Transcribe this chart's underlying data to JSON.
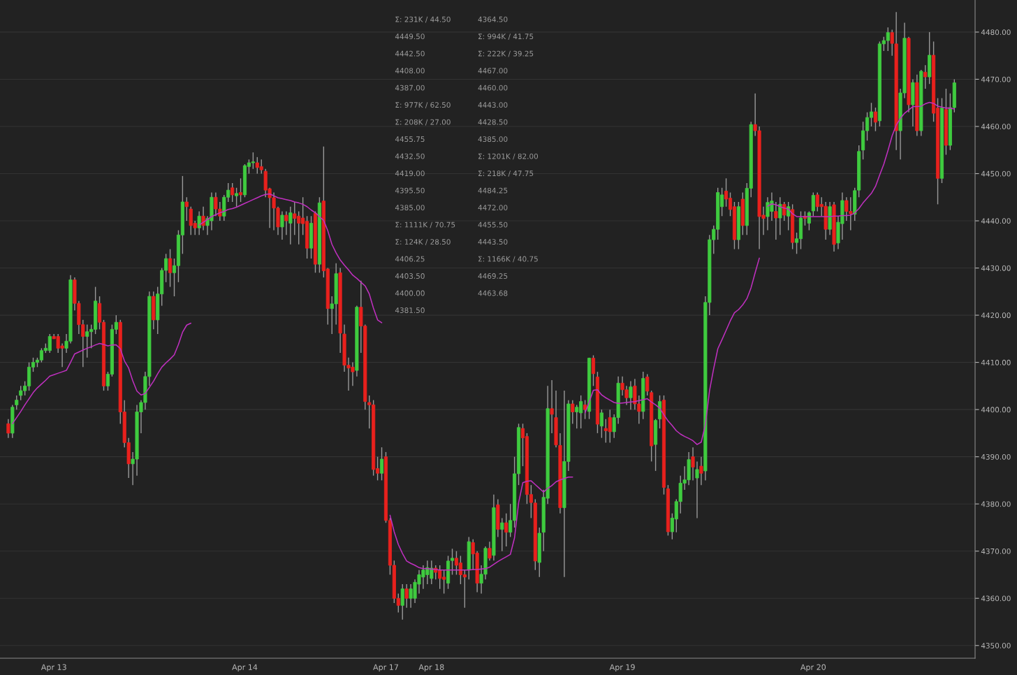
{
  "chart_data": {
    "type": "candlestick",
    "categories": [
      null,
      null,
      null,
      null,
      null,
      null,
      null,
      null,
      null,
      null,
      null,
      "Apr 13",
      null,
      null,
      null,
      null,
      null,
      null,
      null,
      null,
      null,
      null,
      null,
      null,
      null,
      null,
      null,
      null,
      null,
      null,
      null,
      null,
      null,
      null,
      null,
      null,
      null,
      null,
      null,
      null,
      null,
      null,
      null,
      null,
      null,
      null,
      null,
      null,
      null,
      null,
      null,
      null,
      null,
      null,
      null,
      null,
      null,
      "Apr 14",
      null,
      null,
      null,
      null,
      null,
      null,
      null,
      null,
      null,
      null,
      null,
      null,
      null,
      null,
      null,
      null,
      null,
      null,
      null,
      null,
      null,
      null,
      null,
      null,
      null,
      null,
      null,
      null,
      null,
      null,
      null,
      null,
      null,
      "Apr 17",
      null,
      null,
      null,
      null,
      null,
      null,
      null,
      null,
      null,
      null,
      "Apr 18",
      null,
      null,
      null,
      null,
      null,
      null,
      null,
      null,
      null,
      null,
      null,
      null,
      null,
      null,
      null,
      null,
      null,
      null,
      null,
      null,
      null,
      null,
      null,
      null,
      null,
      null,
      null,
      null,
      null,
      null,
      null,
      null,
      null,
      null,
      null,
      null,
      null,
      null,
      null,
      null,
      null,
      null,
      null,
      null,
      null,
      "Apr 19",
      null,
      null,
      null,
      null,
      null,
      null,
      null,
      null,
      null,
      null,
      null,
      null,
      null,
      null,
      null,
      null,
      null,
      null,
      null,
      null,
      null,
      null,
      null,
      null,
      null,
      null,
      null,
      null,
      null,
      null,
      null,
      null,
      null,
      null,
      null,
      null,
      null,
      null,
      null,
      null,
      null,
      null,
      null,
      null,
      null,
      "Apr 20",
      null,
      null,
      null,
      null,
      null,
      null,
      null,
      null,
      null,
      null,
      null,
      null,
      null,
      null,
      null,
      null,
      null,
      null,
      null,
      null,
      null,
      null,
      null,
      null,
      null,
      null,
      null,
      null,
      null,
      null,
      null,
      null,
      null,
      null
    ],
    "ohlc": [
      [
        4397,
        4398,
        4394,
        4395
      ],
      [
        4395,
        4401,
        4394,
        4400.5
      ],
      [
        4401,
        4403,
        4400,
        4402
      ],
      [
        4403,
        4405,
        4402,
        4404
      ],
      [
        4404,
        4406,
        4403,
        4405
      ],
      [
        4405,
        4410,
        4404,
        4409
      ],
      [
        4409,
        4411,
        4408,
        4410
      ],
      [
        4410,
        4411,
        4409,
        4410.5
      ],
      [
        4410.5,
        4413,
        4410,
        4412.5
      ],
      [
        4412.5,
        4414,
        4412,
        4413
      ],
      [
        4412.5,
        4416,
        4412,
        4415.5
      ],
      [
        4415.5,
        4416,
        4415,
        4415
      ],
      [
        4415.5,
        4416,
        4412,
        4413
      ],
      [
        4413.5,
        4414,
        4409,
        4413
      ],
      [
        4413,
        4416,
        4412,
        4414.5
      ],
      [
        4414.5,
        4428.5,
        4414,
        4427.5
      ],
      [
        4427.5,
        4428,
        4421,
        4422.5
      ],
      [
        4422.5,
        4423,
        4416,
        4418
      ],
      [
        4418,
        4419,
        4409,
        4415.5
      ],
      [
        4415.5,
        4418,
        4411,
        4416.5
      ],
      [
        4416.5,
        4418,
        4413,
        4417
      ],
      [
        4417,
        4426,
        4416,
        4423
      ],
      [
        4422.5,
        4424,
        4417,
        4418.5
      ],
      [
        4418.5,
        4419,
        4404,
        4405
      ],
      [
        4405,
        4408,
        4404,
        4407.5
      ],
      [
        4407.5,
        4418,
        4407,
        4417
      ],
      [
        4417,
        4420,
        4416,
        4418.5
      ],
      [
        4418.5,
        4419,
        4397,
        4399.5
      ],
      [
        4399.5,
        4402,
        4392,
        4393
      ],
      [
        4393,
        4394,
        4385.5,
        4388.5
      ],
      [
        4388.5,
        4391,
        4384,
        4389.5
      ],
      [
        4389.5,
        4401,
        4386,
        4399.5
      ],
      [
        4399.5,
        4402,
        4395,
        4401.5
      ],
      [
        4401.5,
        4408,
        4400,
        4407
      ],
      [
        4407,
        4425,
        4405,
        4424
      ],
      [
        4424,
        4425,
        4417,
        4419
      ],
      [
        4419,
        4426,
        4416,
        4424.5
      ],
      [
        4424.5,
        4430,
        4422,
        4429.5
      ],
      [
        4429.5,
        4433,
        4427,
        4432
      ],
      [
        4432,
        4434,
        4426,
        4429
      ],
      [
        4429,
        4432,
        4424,
        4430.5
      ],
      [
        4430.5,
        4438,
        4427,
        4437
      ],
      [
        4437,
        4449.5,
        4433,
        4444
      ],
      [
        4444,
        4445,
        4440,
        4443
      ],
      [
        4442.5,
        4443,
        4437,
        4439
      ],
      [
        4439.5,
        4440,
        4437,
        4438.5
      ],
      [
        4438.5,
        4442,
        4437,
        4441
      ],
      [
        4441,
        4443,
        4438,
        4439
      ],
      [
        4439,
        4441,
        4437,
        4440.5
      ],
      [
        4440,
        4446,
        4438,
        4445
      ],
      [
        4445,
        4446,
        4441,
        4442.5
      ],
      [
        4442.5,
        4444,
        4440,
        4441
      ],
      [
        4441,
        4445.5,
        4440,
        4445
      ],
      [
        4445,
        4448,
        4444,
        4446.5
      ],
      [
        4447,
        4448,
        4444,
        4445.5
      ],
      [
        4445.3,
        4447,
        4443,
        4445.8
      ],
      [
        4446,
        4449,
        4444,
        4445.5
      ],
      [
        4445.5,
        4452,
        4445,
        4451.7
      ],
      [
        4451.5,
        4453,
        4450,
        4452.3
      ],
      [
        4452.3,
        4454.5,
        4451,
        4452.5
      ],
      [
        4452.3,
        4453.5,
        4450,
        4451.3
      ],
      [
        4451.5,
        4453,
        4450,
        4450.8
      ],
      [
        4450.5,
        4451,
        4445,
        4446.5
      ],
      [
        4446.8,
        4447,
        4438.5,
        4444.9
      ],
      [
        4444.9,
        4446,
        4438,
        4442.7
      ],
      [
        4442.7,
        4443,
        4437,
        4438.7
      ],
      [
        4438.7,
        4442,
        4436,
        4441.2
      ],
      [
        4441.2,
        4442,
        4437,
        4440
      ],
      [
        4439.5,
        4443,
        4435,
        4441.7
      ],
      [
        4441.5,
        4444,
        4437,
        4440.5
      ],
      [
        4441,
        4442,
        4435,
        4439.5
      ],
      [
        4440.6,
        4445,
        4437,
        4439.4
      ],
      [
        4439.9,
        4441,
        4432,
        4434.2
      ],
      [
        4434.2,
        4441,
        4432,
        4439.5
      ],
      [
        4441.6,
        4442,
        4429,
        4430.8
      ],
      [
        4430.8,
        4445,
        4429,
        4443.8
      ],
      [
        4444.2,
        4455.75,
        4428,
        4429.4
      ],
      [
        4429.8,
        4430,
        4418,
        4421.4
      ],
      [
        4421.4,
        4424,
        4416,
        4422.4
      ],
      [
        4422.4,
        4431,
        4418,
        4428.8
      ],
      [
        4429,
        4430,
        4412,
        4416.2
      ],
      [
        4416,
        4418,
        4408,
        4409.4
      ],
      [
        4409.4,
        4411,
        4404,
        4408.8
      ],
      [
        4409,
        4410,
        4405,
        4408
      ],
      [
        4408.3,
        4422,
        4407,
        4421.7
      ],
      [
        4421.7,
        4427.3,
        4412,
        4417.7
      ],
      [
        4417.7,
        4418,
        4400,
        4401.7
      ],
      [
        4401.5,
        4403,
        4396,
        4401
      ],
      [
        4401,
        4402,
        4386,
        4387.3
      ],
      [
        4387.5,
        4390,
        4385,
        4386.5
      ],
      [
        4386.5,
        4392,
        4385,
        4389.5
      ],
      [
        4390,
        4391,
        4376,
        4376.5
      ],
      [
        4376.5,
        4377,
        4365,
        4367
      ],
      [
        4367,
        4368,
        4359,
        4360
      ],
      [
        4360,
        4361,
        4357,
        4358.5
      ],
      [
        4358.5,
        4363,
        4355.5,
        4362
      ],
      [
        4362,
        4363,
        4358,
        4360
      ],
      [
        4360,
        4363,
        4358,
        4362
      ],
      [
        4360,
        4364,
        4359,
        4363.4
      ],
      [
        4363,
        4366,
        4361,
        4365
      ],
      [
        4364.5,
        4367,
        4362,
        4366
      ],
      [
        4365,
        4368,
        4363,
        4366.5
      ],
      [
        4364.2,
        4368,
        4363,
        4366.4
      ],
      [
        4366.4,
        4367,
        4364,
        4365.5
      ],
      [
        4366,
        4367,
        4362,
        4364.2
      ],
      [
        4364.5,
        4366,
        4361,
        4364
      ],
      [
        4363.2,
        4369,
        4362,
        4367.9
      ],
      [
        4368,
        4370.5,
        4365,
        4368.5
      ],
      [
        4368.5,
        4370,
        4365,
        4367
      ],
      [
        4367.5,
        4369,
        4363,
        4365
      ],
      [
        4365,
        4366,
        4358,
        4364.5
      ],
      [
        4366,
        4373,
        4364,
        4372
      ],
      [
        4371.8,
        4372.5,
        4366,
        4369.4
      ],
      [
        4369.6,
        4370,
        4361.3,
        4363.2
      ],
      [
        4363.2,
        4367,
        4361,
        4365.1
      ],
      [
        4365.1,
        4371,
        4364,
        4370.6
      ],
      [
        4370.6,
        4372,
        4368,
        4368.5
      ],
      [
        4369.1,
        4382,
        4368,
        4379.2
      ],
      [
        4379.8,
        4381,
        4373,
        4374.6
      ],
      [
        4374.6,
        4377,
        4370,
        4376
      ],
      [
        4376,
        4378,
        4371,
        4374
      ],
      [
        4374,
        4380,
        4373,
        4376.5
      ],
      [
        4376.5,
        4390,
        4375,
        4386.4
      ],
      [
        4386.4,
        4397,
        4384,
        4396.2
      ],
      [
        4396,
        4397,
        4388,
        4394
      ],
      [
        4394.3,
        4395,
        4380,
        4382
      ],
      [
        4382,
        4384,
        4377,
        4380.3
      ],
      [
        4380.2,
        4381,
        4366,
        4367.9
      ],
      [
        4367.6,
        4375,
        4364.5,
        4373.8
      ],
      [
        4374,
        4383,
        4370,
        4381.4
      ],
      [
        4381.2,
        4405,
        4380,
        4400.2
      ],
      [
        4400.2,
        4406.25,
        4395,
        4399
      ],
      [
        4398.3,
        4404,
        4392,
        4392.5
      ],
      [
        4392.4,
        4395,
        4378,
        4379.2
      ],
      [
        4379.2,
        4404,
        4364.5,
        4389
      ],
      [
        4389,
        4402,
        4387,
        4401.2
      ],
      [
        4401.2,
        4402,
        4397,
        4399.5
      ],
      [
        4399.5,
        4401,
        4396,
        4400.5
      ],
      [
        4399.3,
        4403,
        4396,
        4401.7
      ],
      [
        4401,
        4402,
        4398,
        4400
      ],
      [
        4399.6,
        4411,
        4398,
        4410.9
      ],
      [
        4410.9,
        4411.5,
        4405,
        4407.6
      ],
      [
        4406.9,
        4408,
        4395,
        4396.9
      ],
      [
        4396.5,
        4400,
        4394,
        4399.3
      ],
      [
        4396,
        4398,
        4393,
        4395.5
      ],
      [
        4398.3,
        4400,
        4393,
        4395.3
      ],
      [
        4395.3,
        4399,
        4394,
        4398.3
      ],
      [
        4398.3,
        4407,
        4397,
        4405.6
      ],
      [
        4405.6,
        4407,
        4403,
        4404.2
      ],
      [
        4404.2,
        4405,
        4401,
        4402.5
      ],
      [
        4402.5,
        4406,
        4400,
        4404.8
      ],
      [
        4405,
        4406.5,
        4400,
        4401.2
      ],
      [
        4401.2,
        4403,
        4397,
        4399.6
      ],
      [
        4399.6,
        4408,
        4398,
        4406.6
      ],
      [
        4406.9,
        4407.5,
        4403,
        4403.9
      ],
      [
        4403.6,
        4404,
        4389,
        4392.3
      ],
      [
        4392.6,
        4398,
        4387,
        4397.7
      ],
      [
        4398,
        4403,
        4396,
        4401.7
      ],
      [
        4402,
        4403,
        4382,
        4383.5
      ],
      [
        4383.2,
        4384,
        4373.3,
        4374.1
      ],
      [
        4374.1,
        4378,
        4372.5,
        4377
      ],
      [
        4376.8,
        4381,
        4374,
        4380.5
      ],
      [
        4380.5,
        4386,
        4378,
        4384.4
      ],
      [
        4384.4,
        4388,
        4383,
        4385.1
      ],
      [
        4385.1,
        4391,
        4384,
        4389.4
      ],
      [
        4390,
        4392,
        4385,
        4387.8
      ],
      [
        4385.5,
        4389,
        4377,
        4387.3
      ],
      [
        4388,
        4390,
        4384,
        4386.5
      ],
      [
        4387,
        4424,
        4385,
        4422.7
      ],
      [
        4422.7,
        4437,
        4420,
        4436
      ],
      [
        4436,
        4439,
        4433,
        4438.2
      ],
      [
        4438.2,
        4447,
        4436,
        4446
      ],
      [
        4443,
        4447,
        4441,
        4445.5
      ],
      [
        4446.3,
        4449,
        4443,
        4444.6
      ],
      [
        4444.8,
        4446,
        4441,
        4442.4
      ],
      [
        4443,
        4444,
        4434,
        4436
      ],
      [
        4436,
        4444,
        4434,
        4443
      ],
      [
        4444.6,
        4446,
        4437,
        4439
      ],
      [
        4439,
        4448,
        4437,
        4446.9
      ],
      [
        4446.9,
        4461,
        4445,
        4460.4
      ],
      [
        4460.4,
        4467,
        4458,
        4459.1
      ],
      [
        4459.1,
        4460,
        4434,
        4440.9
      ],
      [
        4441.2,
        4443,
        4437,
        4440.5
      ],
      [
        4440.9,
        4445,
        4438,
        4443.9
      ],
      [
        4442,
        4446,
        4440,
        4444.2
      ],
      [
        4442,
        4444,
        4436,
        4440.6
      ],
      [
        4440.6,
        4445,
        4437,
        4443.5
      ],
      [
        4443.5,
        4444,
        4440,
        4441.2
      ],
      [
        4441,
        4444,
        4438,
        4443
      ],
      [
        4442.4,
        4443.5,
        4434,
        4435.4
      ],
      [
        4435.4,
        4437.5,
        4433,
        4436.2
      ],
      [
        4436.2,
        4442,
        4434,
        4440.6
      ],
      [
        4441,
        4442,
        4439,
        4440.5
      ],
      [
        4439.5,
        4442,
        4438,
        4441.7
      ],
      [
        4442.1,
        4446,
        4441,
        4445.4
      ],
      [
        4445.5,
        4446,
        4442,
        4443
      ],
      [
        4443.5,
        4445,
        4441,
        4443
      ],
      [
        4443.1,
        4444,
        4436,
        4438.2
      ],
      [
        4438.2,
        4444,
        4437,
        4443
      ],
      [
        4443.4,
        4444,
        4433.5,
        4435
      ],
      [
        4435.3,
        4441,
        4434,
        4439.7
      ],
      [
        4439.4,
        4446,
        4436,
        4444.3
      ],
      [
        4444.3,
        4445,
        4440,
        4442
      ],
      [
        4442,
        4445,
        4438,
        4441.5
      ],
      [
        4441.4,
        4447,
        4440,
        4446.4
      ],
      [
        4446.5,
        4456,
        4445,
        4454.7
      ],
      [
        4455,
        4461,
        4453,
        4459.1
      ],
      [
        4459.1,
        4463,
        4457,
        4461.9
      ],
      [
        4461.9,
        4465,
        4460,
        4463.1
      ],
      [
        4463.1,
        4464,
        4459,
        4460.9
      ],
      [
        4461.2,
        4478,
        4460,
        4477.5
      ],
      [
        4477.5,
        4479,
        4476,
        4478.2
      ],
      [
        4478.2,
        4481,
        4476,
        4479.9
      ],
      [
        4479.9,
        4480.5,
        4475,
        4477.6
      ],
      [
        4477.5,
        4484.25,
        4455,
        4459.1
      ],
      [
        4459.1,
        4468,
        4453,
        4467.1
      ],
      [
        4467.1,
        4482,
        4466,
        4478.7
      ],
      [
        4478.7,
        4479,
        4463,
        4464.6
      ],
      [
        4464.6,
        4470,
        4460,
        4469.3
      ],
      [
        4469.3,
        4471,
        4458,
        4459.1
      ],
      [
        4459.1,
        4472,
        4458,
        4471.7
      ],
      [
        4471.5,
        4473,
        4468,
        4470.5
      ],
      [
        4470.5,
        4480,
        4469,
        4475.1
      ],
      [
        4475.1,
        4478,
        4461,
        4462.8
      ],
      [
        4463.9,
        4466,
        4443.5,
        4449
      ],
      [
        4449,
        4466,
        4448,
        4463.9
      ],
      [
        4463.6,
        4468,
        4454,
        4456
      ],
      [
        4456,
        4467,
        4455,
        4464
      ],
      [
        4464,
        4470,
        4463,
        4469.25
      ]
    ],
    "colors": [
      "#e8211d",
      "#3fcb3f",
      "#3fcb3f",
      "#3fcb3f",
      "#3fcb3f",
      "#3fcb3f",
      "#3fcb3f",
      "#3fcb3f",
      "#3fcb3f",
      "#3fcb3f",
      "#3fcb3f",
      "#e8211d",
      "#e8211d",
      "#e8211d",
      "#3fcb3f",
      "#3fcb3f",
      "#e8211d",
      "#e8211d",
      "#e8211d",
      "#3fcb3f",
      "#3fcb3f",
      "#3fcb3f",
      "#e8211d",
      "#e8211d",
      "#3fcb3f",
      "#3fcb3f",
      "#3fcb3f",
      "#e8211d",
      "#e8211d",
      "#e8211d",
      "#3fcb3f",
      "#3fcb3f",
      "#3fcb3f",
      "#3fcb3f",
      "#3fcb3f",
      "#e8211d",
      "#3fcb3f",
      "#3fcb3f",
      "#3fcb3f",
      "#e8211d",
      "#3fcb3f",
      "#3fcb3f",
      "#3fcb3f",
      "#e8211d",
      "#e8211d",
      "#e8211d",
      "#3fcb3f",
      "#e8211d",
      "#3fcb3f",
      "#3fcb3f",
      "#e8211d",
      "#e8211d",
      "#3fcb3f",
      "#3fcb3f",
      "#e8211d",
      "#3fcb3f",
      "#e8211d",
      "#3fcb3f",
      "#3fcb3f",
      "#3fcb3f",
      "#e8211d",
      "#e8211d",
      "#e8211d",
      "#e8211d",
      "#e8211d",
      "#e8211d",
      "#3fcb3f",
      "#e8211d",
      "#3fcb3f",
      "#e8211d",
      "#e8211d",
      "#e8211d",
      "#e8211d",
      "#3fcb3f",
      "#e8211d",
      "#3fcb3f",
      "#e8211d",
      "#e8211d",
      "#3fcb3f",
      "#3fcb3f",
      "#e8211d",
      "#e8211d",
      "#e8211d",
      "#e8211d",
      "#3fcb3f",
      "#e8211d",
      "#e8211d",
      "#e8211d",
      "#e8211d",
      "#e8211d",
      "#3fcb3f",
      "#e8211d",
      "#e8211d",
      "#e8211d",
      "#e8211d",
      "#3fcb3f",
      "#e8211d",
      "#3fcb3f",
      "#3fcb3f",
      "#3fcb3f",
      "#3fcb3f",
      "#3fcb3f",
      "#3fcb3f",
      "#e8211d",
      "#e8211d",
      "#e8211d",
      "#3fcb3f",
      "#3fcb3f",
      "#e8211d",
      "#e8211d",
      "#e8211d",
      "#3fcb3f",
      "#e8211d",
      "#e8211d",
      "#3fcb3f",
      "#3fcb3f",
      "#e8211d",
      "#3fcb3f",
      "#e8211d",
      "#3fcb3f",
      "#e8211d",
      "#3fcb3f",
      "#3fcb3f",
      "#3fcb3f",
      "#e8211d",
      "#e8211d",
      "#e8211d",
      "#e8211d",
      "#3fcb3f",
      "#3fcb3f",
      "#3fcb3f",
      "#e8211d",
      "#e8211d",
      "#e8211d",
      "#3fcb3f",
      "#3fcb3f",
      "#e8211d",
      "#3fcb3f",
      "#3fcb3f",
      "#e8211d",
      "#3fcb3f",
      "#e8211d",
      "#e8211d",
      "#3fcb3f",
      "#e8211d",
      "#e8211d",
      "#3fcb3f",
      "#3fcb3f",
      "#e8211d",
      "#e8211d",
      "#3fcb3f",
      "#e8211d",
      "#e8211d",
      "#3fcb3f",
      "#e8211d",
      "#e8211d",
      "#3fcb3f",
      "#3fcb3f",
      "#e8211d",
      "#e8211d",
      "#3fcb3f",
      "#3fcb3f",
      "#3fcb3f",
      "#3fcb3f",
      "#3fcb3f",
      "#e8211d",
      "#3fcb3f",
      "#e8211d",
      "#3fcb3f",
      "#3fcb3f",
      "#3fcb3f",
      "#3fcb3f",
      "#3fcb3f",
      "#e8211d",
      "#e8211d",
      "#e8211d",
      "#3fcb3f",
      "#e8211d",
      "#3fcb3f",
      "#3fcb3f",
      "#e8211d",
      "#e8211d",
      "#e8211d",
      "#3fcb3f",
      "#3fcb3f",
      "#e8211d",
      "#3fcb3f",
      "#e8211d",
      "#3fcb3f",
      "#e8211d",
      "#3fcb3f",
      "#3fcb3f",
      "#e8211d",
      "#3fcb3f",
      "#3fcb3f",
      "#e8211d",
      "#e8211d",
      "#e8211d",
      "#3fcb3f",
      "#e8211d",
      "#3fcb3f",
      "#3fcb3f",
      "#e8211d",
      "#e8211d",
      "#3fcb3f",
      "#3fcb3f",
      "#3fcb3f",
      "#3fcb3f",
      "#3fcb3f",
      "#e8211d",
      "#3fcb3f",
      "#3fcb3f",
      "#3fcb3f",
      "#e8211d",
      "#e8211d",
      "#3fcb3f",
      "#3fcb3f",
      "#e8211d",
      "#3fcb3f",
      "#e8211d",
      "#3fcb3f",
      "#e8211d",
      "#3fcb3f",
      "#e8211d",
      "#e8211d",
      "#3fcb3f",
      "#e8211d",
      "#3fcb3f",
      "#3fcb3f"
    ],
    "ylim": [
      4347.3,
      4486.8
    ],
    "yticks": [
      {
        "value": 4350,
        "label": "4350.00"
      },
      {
        "value": 4360,
        "label": "4360.00"
      },
      {
        "value": 4370,
        "label": "4370.00"
      },
      {
        "value": 4380,
        "label": "4380.00"
      },
      {
        "value": 4390,
        "label": "4390.00"
      },
      {
        "value": 4400,
        "label": "4400.00"
      },
      {
        "value": 4410,
        "label": "4410.00"
      },
      {
        "value": 4420,
        "label": "4420.00"
      },
      {
        "value": 4430,
        "label": "4430.00"
      },
      {
        "value": 4440,
        "label": "4440.00"
      },
      {
        "value": 4450,
        "label": "4450.00"
      },
      {
        "value": 4460,
        "label": "4460.00"
      },
      {
        "value": 4470,
        "label": "4470.00"
      },
      {
        "value": 4480,
        "label": "4480.00"
      }
    ],
    "grid": "y",
    "series": [
      {
        "type": "line",
        "color": "#c030c0",
        "values": [
          null,
          4397,
          4398.3,
          4399.6,
          4401,
          4402.3,
          4403.6,
          4404.6,
          4405.4,
          4406.2,
          4407.1,
          4407.4,
          4407.7,
          4408,
          4408.3,
          4410,
          4411.8,
          4412.2,
          4412.6,
          4413,
          4413.3,
          4413.7,
          4414,
          4413.8,
          4413.5,
          4413.7,
          4413.7,
          4412.9,
          4410.3,
          4408.8,
          4406.1,
          4403.9,
          4403.1,
          4403.4,
          4404.7,
          4406,
          4407.6,
          4409,
          4409.9,
          4410.7,
          4411.6,
          4413.8,
          4416.4,
          4417.9,
          4418.3,
          null,
          4439.1,
          4439.7,
          4440.3,
          4440.9,
          4441.3,
          4441.7,
          4442,
          4442.4,
          4442.6,
          4442.9,
          4443.3,
          4443.7,
          4444.1,
          4444.5,
          4444.9,
          4445.3,
          4445.6,
          4445.7,
          4445.3,
          4444.9,
          4444.7,
          4444.5,
          4444.3,
          4444,
          4443.8,
          4443.5,
          4443,
          4442.3,
          4441.7,
          4440.9,
          4440.1,
          4437.9,
          4435,
          4433.2,
          4431.7,
          4430.6,
          4429.6,
          4428.5,
          4427.8,
          4427,
          4426.2,
          4424.5,
          4421.5,
          4419,
          4418.4,
          null,
          4377.6,
          4374.1,
          4371.4,
          4369.5,
          4367.9,
          4367.4,
          4367,
          4366.5,
          4366.3,
          4366.3,
          4366.2,
          4366.1,
          4366,
          4366,
          4366,
          4366,
          4366,
          4366,
          4366,
          4366,
          4366.1,
          4366.1,
          4366.2,
          4366.3,
          4366.6,
          4367.2,
          4367.8,
          4368.3,
          4368.8,
          4369.3,
          4372.8,
          4380.3,
          4384.5,
          4384.8,
          4384.9,
          4384.1,
          4383.3,
          4382.5,
          4383.3,
          4383.9,
          4384.7,
          4385.1,
          4385.4,
          4385.7,
          4385.7,
          null,
          null,
          4399.3,
          4401.6,
          4404.1,
          4404.2,
          4403.1,
          4402.5,
          4402,
          4401.5,
          4401.3,
          4401.4,
          4401.5,
          4401.6,
          4401.7,
          4401.9,
          4402.1,
          4402.3,
          4401.6,
          4401,
          4400.3,
          4398.9,
          4397.6,
          4396.6,
          4395.5,
          4394.8,
          4394.3,
          4393.9,
          4393.4,
          4392.6,
          4393.1,
          4396.8,
          4404,
          4408.7,
          4412.9,
          4414.8,
          4416.8,
          4418.8,
          4420.5,
          4421.2,
          4422.2,
          4423.5,
          4425.8,
          4429,
          4432.1,
          null,
          4443.1,
          4443.6,
          4443.4,
          4443,
          4442.7,
          4442.5,
          4441.5,
          4440.9,
          4440.9,
          4440.9,
          4440.9,
          4440.9,
          4440.9,
          4440.9,
          4440.9,
          4440.9,
          4441,
          4441,
          4441.1,
          4441.1,
          4441.2,
          4441.7,
          4442.6,
          4443.8,
          4444.8,
          4445.8,
          4447.3,
          4449.7,
          4452,
          4454.9,
          4458,
          4460.3,
          4461.7,
          4462.8,
          4463.5,
          4464.2,
          4464.2,
          4464.3,
          4464.8,
          4465.1,
          4464.9,
          4464.3,
          4464.1,
          4463.9,
          4463.9,
          4463.7
        ]
      }
    ],
    "annotations": [
      "Σ: 231K / 44.50",
      "4449.50",
      "4442.50",
      "4408.00",
      "4387.00",
      "Σ: 977K / 62.50",
      "Σ: 208K / 27.00",
      "4455.75",
      "4432.50",
      "4419.00",
      "4395.50",
      "4385.00",
      "Σ: 1111K / 70.75",
      "Σ: 124K / 28.50",
      "4406.25",
      "4403.50",
      "4400.00",
      "4381.50",
      "4364.50",
      "Σ: 994K / 41.75",
      "Σ: 222K / 39.25",
      "4467.00",
      "4460.00",
      "4443.00",
      "4428.50",
      "4385.00",
      "Σ: 1201K / 82.00",
      "Σ: 218K / 47.75",
      "4484.25",
      "4472.00",
      "4455.50",
      "4443.50",
      "Σ: 1166K / 40.75",
      "4469.25",
      "4463.68"
    ]
  }
}
